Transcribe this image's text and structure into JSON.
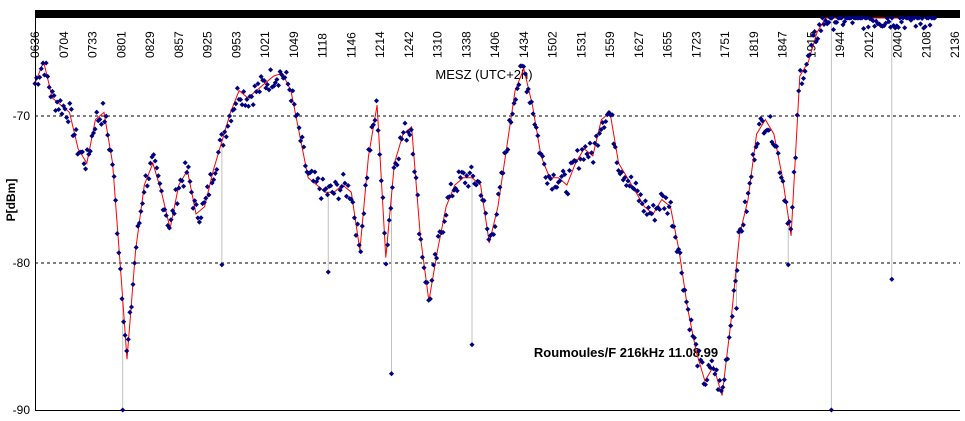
{
  "chart_data": {
    "type": "scatter",
    "subtitle": "MESZ  (UTC+2h)",
    "ylabel": "P[dBm]",
    "annotation": "Roumoules/F 216kHz  11.08.99",
    "ylim": [
      -90,
      -63
    ],
    "yticks": [
      -70,
      -80,
      -90
    ],
    "x_ticklabels": [
      "0636",
      "0704",
      "0733",
      "0801",
      "0829",
      "0857",
      "0925",
      "0953",
      "1021",
      "1049",
      "1118",
      "1146",
      "1214",
      "1242",
      "1310",
      "1338",
      "1406",
      "1434",
      "1502",
      "1531",
      "1559",
      "1627",
      "1655",
      "1723",
      "1751",
      "1819",
      "1847",
      "1915",
      "1944",
      "2012",
      "2040",
      "2108",
      "2136"
    ],
    "xlim": [
      0,
      32
    ],
    "grid": "dashed at -70 and -80 dBm",
    "colors": {
      "points": "#000080",
      "smooth": "#ff0000",
      "spikes": "#c0c0c0",
      "topbar": "#000000"
    },
    "series": [
      {
        "kind": "scatter+smoothed line",
        "x": [
          0,
          0.3,
          0.6,
          0.9,
          1.2,
          1.5,
          1.8,
          2.1,
          2.4,
          2.7,
          3.0,
          3.2,
          3.5,
          3.8,
          4.1,
          4.4,
          4.7,
          5.0,
          5.3,
          5.6,
          5.9,
          6.2,
          6.5,
          6.8,
          7.1,
          7.4,
          7.7,
          8.0,
          8.3,
          8.6,
          8.9,
          9.2,
          9.5,
          9.8,
          10.1,
          10.4,
          10.7,
          11.0,
          11.3,
          11.6,
          11.9,
          12.2,
          12.5,
          12.8,
          13.1,
          13.4,
          13.7,
          14.0,
          14.3,
          14.6,
          14.9,
          15.2,
          15.5,
          15.8,
          16.1,
          16.4,
          16.7,
          17.0,
          17.3,
          17.6,
          17.9,
          18.2,
          18.5,
          18.8,
          19.1,
          19.4,
          19.7,
          20.0,
          20.3,
          20.6,
          20.9,
          21.2,
          21.5,
          21.8,
          22.1,
          22.4,
          22.7,
          23.0,
          23.3,
          23.6,
          23.9,
          24.2,
          24.5,
          24.8,
          25.1,
          25.4,
          25.7,
          26.0,
          26.3,
          26.6,
          26.9,
          27.2,
          27.5,
          27.8,
          28.1,
          28.4,
          28.7,
          29.0,
          29.3,
          29.6,
          29.9,
          30.2,
          30.5,
          30.8,
          31.1,
          31.3
        ],
        "y": [
          -67.5,
          -66,
          -68.5,
          -69,
          -69.5,
          -72,
          -73,
          -70,
          -69.5,
          -73,
          -81,
          -86.5,
          -79,
          -74.5,
          -73,
          -75,
          -77.5,
          -74.5,
          -73.5,
          -76.5,
          -76,
          -73.5,
          -71.5,
          -69.5,
          -68,
          -68.5,
          -68,
          -67.5,
          -67,
          -66.8,
          -68,
          -71,
          -74,
          -74.5,
          -75,
          -75,
          -74.5,
          -75,
          -79,
          -72.5,
          -69,
          -79.5,
          -73,
          -71,
          -70.5,
          -78,
          -82.5,
          -79,
          -76,
          -74.5,
          -74,
          -74,
          -74.5,
          -78.5,
          -76,
          -72,
          -68,
          -66.5,
          -69,
          -72.5,
          -74,
          -74,
          -74.5,
          -73,
          -72,
          -72.5,
          -70,
          -69.5,
          -73,
          -74,
          -75,
          -76,
          -76.5,
          -75.5,
          -76,
          -79,
          -83,
          -86,
          -88,
          -87,
          -89,
          -84,
          -78,
          -75.5,
          -71,
          -70,
          -71,
          -74,
          -78,
          -67,
          -66,
          -64,
          -63,
          -63,
          -63,
          -63,
          -63,
          -63,
          -63,
          -63,
          -63,
          -63,
          -63,
          -63,
          -63,
          -63
        ]
      }
    ],
    "outliers": [
      {
        "x": 3.05,
        "y": -90
      },
      {
        "x": 6.5,
        "y": -80
      },
      {
        "x": 12.4,
        "y": -87.5
      },
      {
        "x": 15.2,
        "y": -85.5
      },
      {
        "x": 10.2,
        "y": -80.5
      },
      {
        "x": 24.4,
        "y": -83
      },
      {
        "x": 26.2,
        "y": -80
      },
      {
        "x": 27.7,
        "y": -90
      },
      {
        "x": 29.8,
        "y": -81
      }
    ]
  }
}
